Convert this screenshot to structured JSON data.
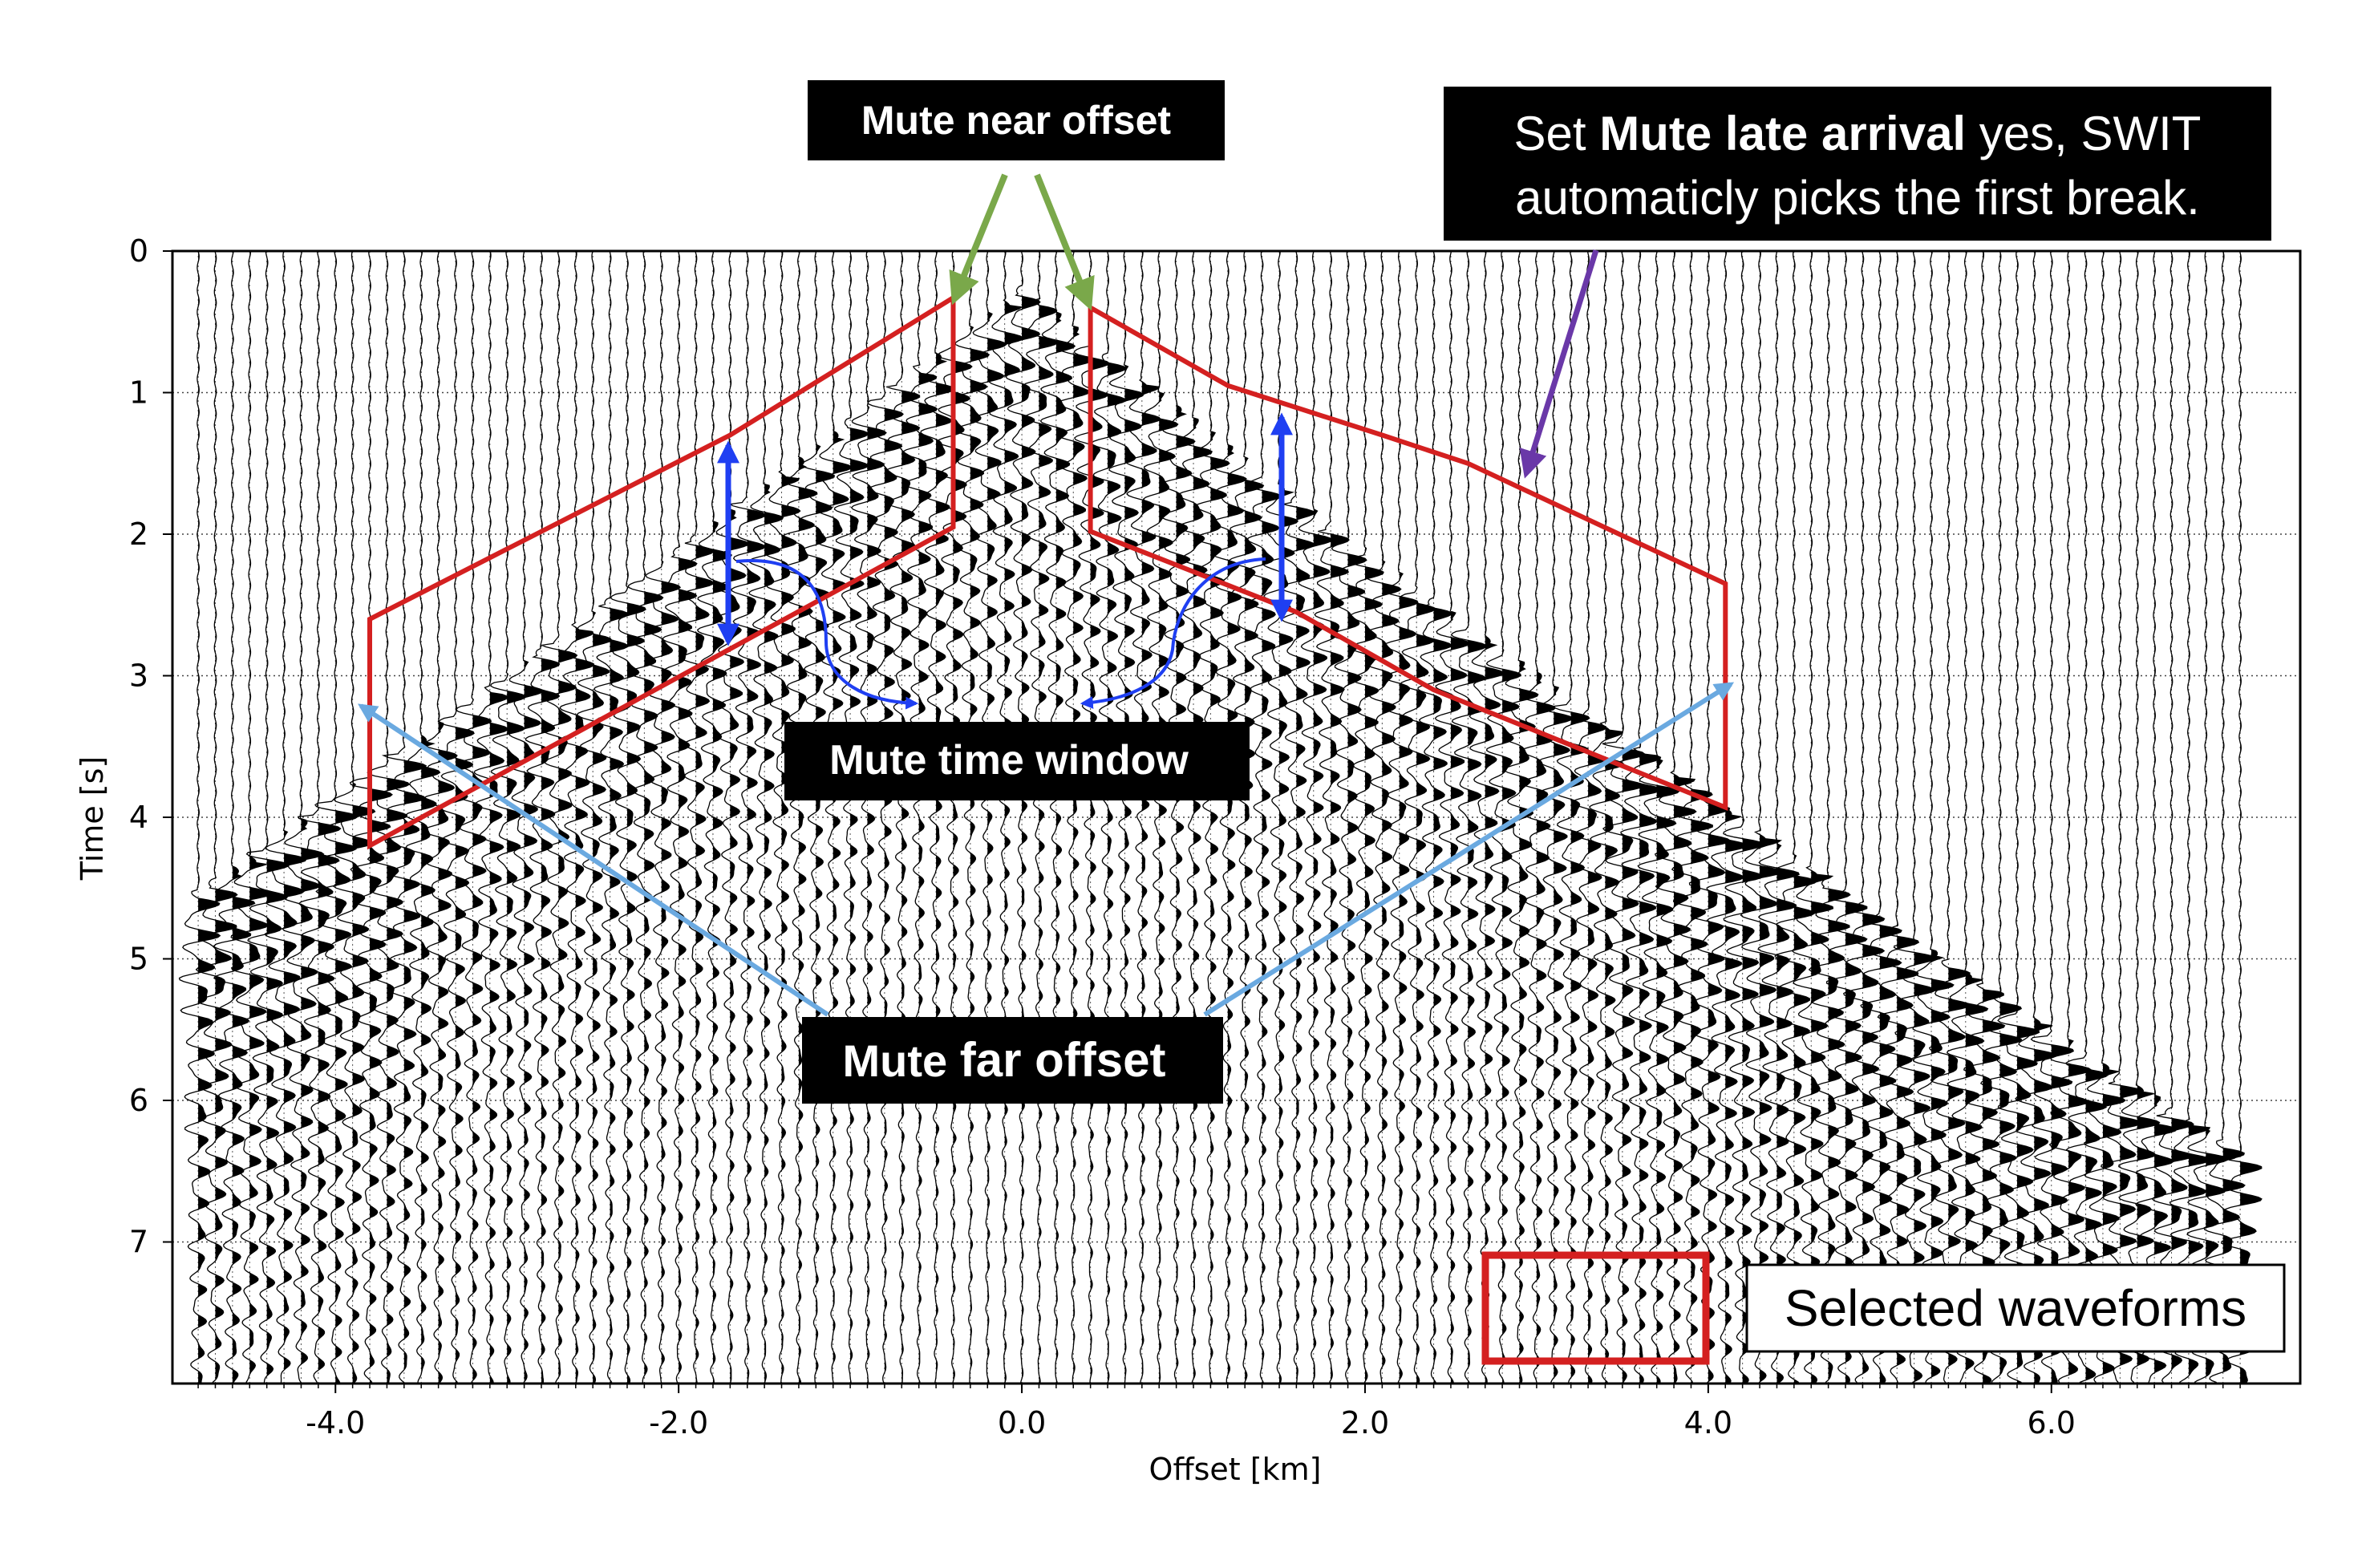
{
  "chart_data": {
    "type": "seismic-wiggle",
    "xlabel": "Offset [km]",
    "ylabel": "Time [s]",
    "xlim": [
      -4.95,
      7.45
    ],
    "ylim": [
      8.0,
      0.0
    ],
    "x_ticks": [
      -4.0,
      -2.0,
      0.0,
      2.0,
      4.0,
      6.0
    ],
    "x_tick_labels": [
      "-4.0",
      "-2.0",
      "0.0",
      "2.0",
      "4.0",
      "6.0"
    ],
    "y_ticks": [
      0,
      1,
      2,
      3,
      4,
      5,
      6,
      7
    ],
    "y_tick_labels": [
      "0",
      "1",
      "2",
      "3",
      "4",
      "5",
      "6",
      "7"
    ],
    "grid": "dotted",
    "traces": {
      "x_start": -4.8,
      "x_end": 7.1,
      "spacing": 0.1,
      "fill": "positive-black"
    },
    "selection_polygons": [
      {
        "name": "left",
        "points": [
          [
            -0.4,
            0.33
          ],
          [
            -0.4,
            1.95
          ],
          [
            -3.8,
            4.2
          ],
          [
            -3.8,
            2.6
          ],
          [
            -1.7,
            1.3
          ]
        ]
      },
      {
        "name": "right",
        "points": [
          [
            0.4,
            0.4
          ],
          [
            0.4,
            1.98
          ],
          [
            1.6,
            2.55
          ],
          [
            2.4,
            3.1
          ],
          [
            4.1,
            3.93
          ],
          [
            4.1,
            2.35
          ],
          [
            2.6,
            1.5
          ],
          [
            2.1,
            1.3
          ],
          [
            1.2,
            0.95
          ]
        ]
      }
    ],
    "legend": {
      "entry": "Selected waveforms",
      "placement": "bottom-right",
      "box_color": "#d42020"
    },
    "colors": {
      "polygon": "#d42020",
      "near_arrow": "#7aa84a",
      "late_arrow": "#6a38a8",
      "window_arrow": "#1f3ff2",
      "far_arrow": "#6aa9e0"
    }
  },
  "annotations": {
    "mute_near": "Mute near offset",
    "late_line1_prefix": "Set ",
    "late_line1_bold": "Mute late arrival",
    "late_line1_suffix": " yes, SWIT",
    "late_line2": "automaticly picks the first break.",
    "mute_window": "Mute time window",
    "mute_far_prefix": "Mute ",
    "mute_far_bold": "far offset"
  }
}
